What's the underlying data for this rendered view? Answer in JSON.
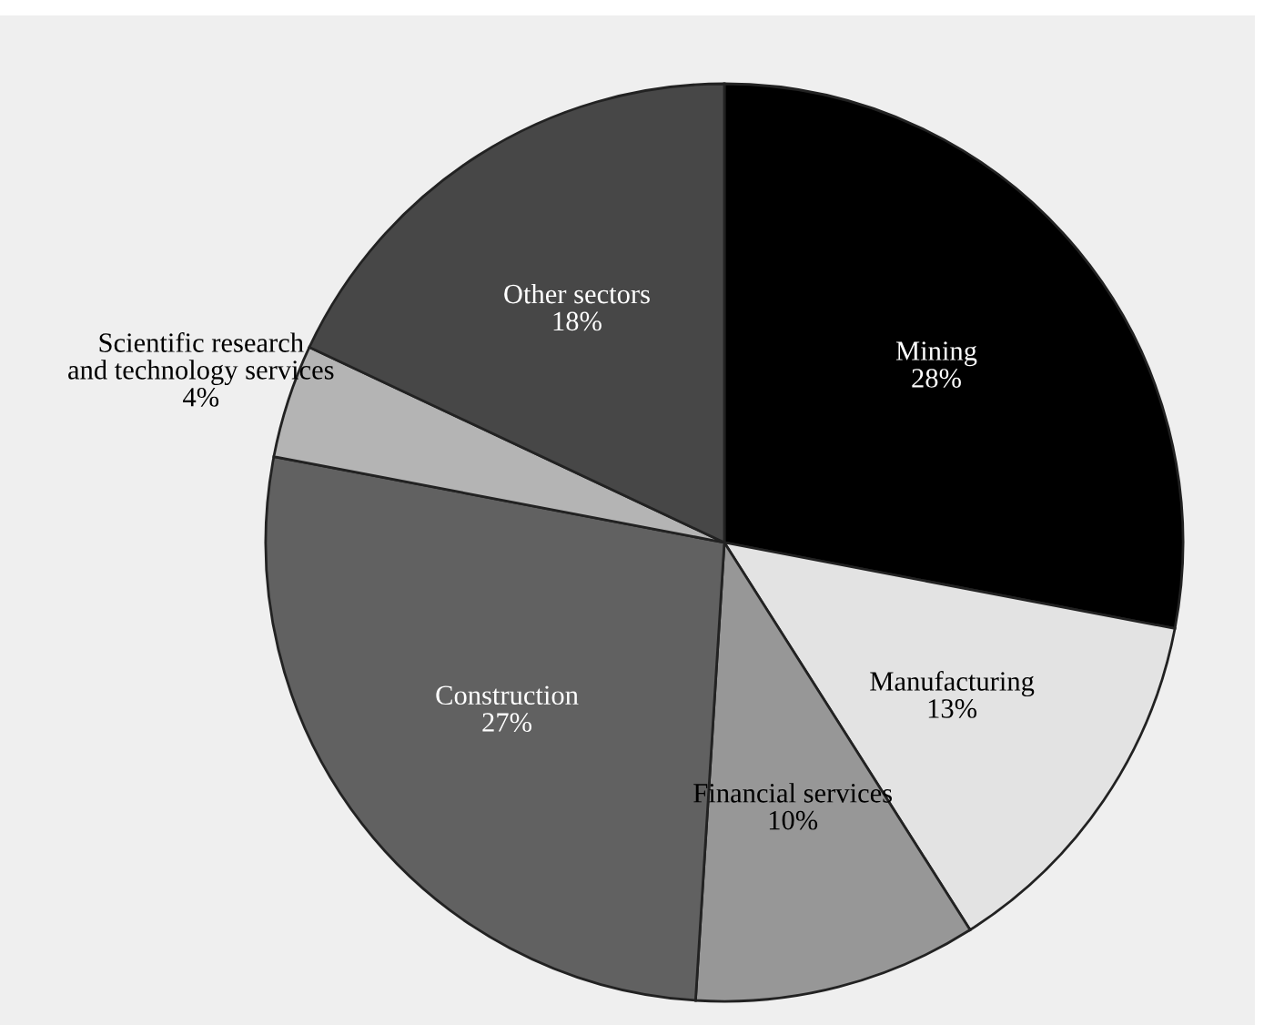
{
  "chart_data": {
    "type": "pie",
    "categories": [
      "Mining",
      "Manufacturing",
      "Financial services",
      "Construction",
      "Scientific research\nand technology services",
      "Other sectors"
    ],
    "values": [
      28,
      13,
      10,
      27,
      4,
      18
    ],
    "colors": [
      "#000000",
      "#e3e3e3",
      "#979797",
      "#616161",
      "#b4b4b4",
      "#474747"
    ],
    "value_labels": [
      "28%",
      "13%",
      "10%",
      "27%",
      "4%",
      "18%"
    ],
    "legend": false
  }
}
